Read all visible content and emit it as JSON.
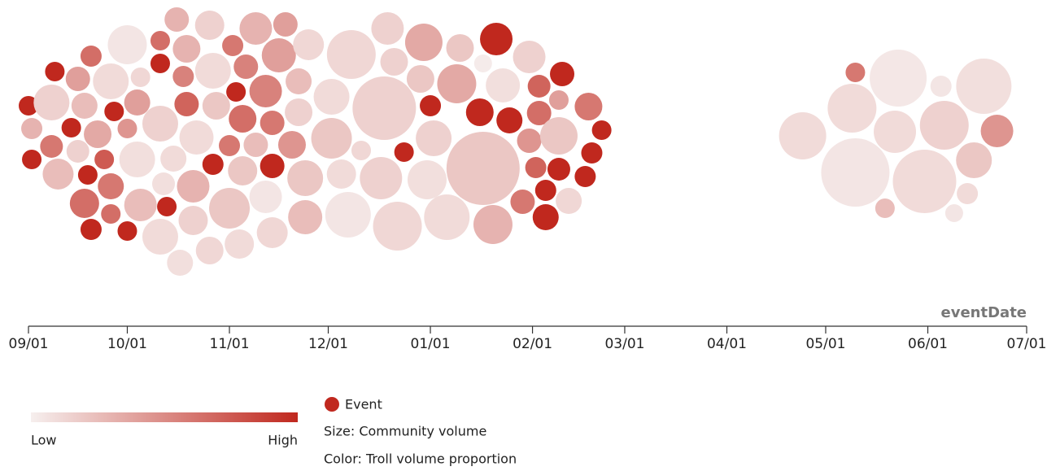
{
  "chart_data": {
    "type": "beeswarm",
    "x_label": "eventDate",
    "xlim": [
      "09/01",
      "07/01"
    ],
    "xticks": [
      "09/01",
      "10/01",
      "11/01",
      "12/01",
      "01/01",
      "02/01",
      "03/01",
      "04/01",
      "05/01",
      "06/01",
      "07/01"
    ],
    "event_color": "#c0281e",
    "color_scale": {
      "low": "#f6efee",
      "high": "#c0281e"
    },
    "legend": {
      "event": "Event",
      "size": "Size: Community volume",
      "color": "Color: Troll volume proportion",
      "low": "Low",
      "high": "High"
    },
    "bubbles": [
      {
        "date": "09/01",
        "size": 12,
        "troll": null,
        "event": true
      },
      {
        "date": "09/02",
        "size": 13,
        "troll": 0.3,
        "event": false
      },
      {
        "date": "09/02",
        "size": 12,
        "troll": null,
        "event": true
      },
      {
        "date": "09/08",
        "size": 14,
        "troll": 0.6,
        "event": false
      },
      {
        "date": "09/09",
        "size": 12,
        "troll": null,
        "event": true
      },
      {
        "date": "09/08",
        "size": 22,
        "troll": 0.15,
        "event": false
      },
      {
        "date": "09/10",
        "size": 19,
        "troll": 0.25,
        "event": false
      },
      {
        "date": "09/14",
        "size": 12,
        "troll": null,
        "event": true
      },
      {
        "date": "09/16",
        "size": 15,
        "troll": 0.4,
        "event": false
      },
      {
        "date": "09/16",
        "size": 14,
        "troll": 0.15,
        "event": false
      },
      {
        "date": "09/18",
        "size": 16,
        "troll": 0.25,
        "event": false
      },
      {
        "date": "09/20",
        "size": 13,
        "troll": 0.65,
        "event": false
      },
      {
        "date": "09/18",
        "size": 18,
        "troll": 0.65,
        "event": false
      },
      {
        "date": "09/19",
        "size": 12,
        "troll": null,
        "event": true
      },
      {
        "date": "09/20",
        "size": 13,
        "troll": null,
        "event": true
      },
      {
        "date": "09/22",
        "size": 17,
        "troll": 0.35,
        "event": false
      },
      {
        "date": "09/24",
        "size": 12,
        "troll": 0.75,
        "event": false
      },
      {
        "date": "09/26",
        "size": 16,
        "troll": 0.6,
        "event": false
      },
      {
        "date": "09/26",
        "size": 12,
        "troll": 0.65,
        "event": false
      },
      {
        "date": "09/26",
        "size": 22,
        "troll": 0.1,
        "event": false
      },
      {
        "date": "09/27",
        "size": 12,
        "troll": null,
        "event": true
      },
      {
        "date": "10/01",
        "size": 12,
        "troll": null,
        "event": true
      },
      {
        "date": "10/01",
        "size": 24,
        "troll": 0.05,
        "event": false
      },
      {
        "date": "10/01",
        "size": 12,
        "troll": 0.45,
        "event": false
      },
      {
        "date": "10/04",
        "size": 16,
        "troll": 0.4,
        "event": false
      },
      {
        "date": "10/04",
        "size": 22,
        "troll": 0.08,
        "event": false
      },
      {
        "date": "10/05",
        "size": 20,
        "troll": 0.25,
        "event": false
      },
      {
        "date": "10/05",
        "size": 12,
        "troll": 0.12,
        "event": false
      },
      {
        "date": "10/11",
        "size": 22,
        "troll": 0.15,
        "event": false
      },
      {
        "date": "10/11",
        "size": 12,
        "troll": 0.65,
        "event": false
      },
      {
        "date": "10/11",
        "size": 12,
        "troll": null,
        "event": true
      },
      {
        "date": "10/12",
        "size": 14,
        "troll": 0.08,
        "event": false
      },
      {
        "date": "10/11",
        "size": 22,
        "troll": 0.1,
        "event": false
      },
      {
        "date": "10/13",
        "size": 12,
        "troll": null,
        "event": true
      },
      {
        "date": "10/15",
        "size": 16,
        "troll": 0.1,
        "event": false
      },
      {
        "date": "10/16",
        "size": 15,
        "troll": 0.3,
        "event": false
      },
      {
        "date": "10/18",
        "size": 13,
        "troll": 0.55,
        "event": false
      },
      {
        "date": "10/19",
        "size": 17,
        "troll": 0.3,
        "event": false
      },
      {
        "date": "10/19",
        "size": 15,
        "troll": 0.7,
        "event": false
      },
      {
        "date": "10/21",
        "size": 20,
        "troll": 0.3,
        "event": false
      },
      {
        "date": "10/21",
        "size": 18,
        "troll": 0.15,
        "event": false
      },
      {
        "date": "10/22",
        "size": 21,
        "troll": 0.1,
        "event": false
      },
      {
        "date": "10/17",
        "size": 16,
        "troll": 0.08,
        "event": false
      },
      {
        "date": "10/26",
        "size": 17,
        "troll": 0.12,
        "event": false
      },
      {
        "date": "10/26",
        "size": 18,
        "troll": 0.15,
        "event": false
      },
      {
        "date": "10/27",
        "size": 22,
        "troll": 0.1,
        "event": false
      },
      {
        "date": "10/28",
        "size": 17,
        "troll": 0.2,
        "event": false
      },
      {
        "date": "10/27",
        "size": 13,
        "troll": null,
        "event": true
      },
      {
        "date": "11/01",
        "size": 25,
        "troll": 0.2,
        "event": false
      },
      {
        "date": "11/01",
        "size": 13,
        "troll": 0.6,
        "event": false
      },
      {
        "date": "11/02",
        "size": 13,
        "troll": 0.6,
        "event": false
      },
      {
        "date": "11/03",
        "size": 12,
        "troll": null,
        "event": true
      },
      {
        "date": "11/05",
        "size": 18,
        "troll": 0.2,
        "event": false
      },
      {
        "date": "11/05",
        "size": 17,
        "troll": 0.65,
        "event": false
      },
      {
        "date": "11/06",
        "size": 15,
        "troll": 0.55,
        "event": false
      },
      {
        "date": "11/09",
        "size": 20,
        "troll": 0.3,
        "event": false
      },
      {
        "date": "11/09",
        "size": 15,
        "troll": 0.25,
        "event": false
      },
      {
        "date": "11/04",
        "size": 18,
        "troll": 0.1,
        "event": false
      },
      {
        "date": "11/12",
        "size": 20,
        "troll": 0.55,
        "event": false
      },
      {
        "date": "11/12",
        "size": 20,
        "troll": 0.05,
        "event": false
      },
      {
        "date": "11/14",
        "size": 15,
        "troll": 0.6,
        "event": false
      },
      {
        "date": "11/14",
        "size": 15,
        "troll": null,
        "event": true
      },
      {
        "date": "11/16",
        "size": 21,
        "troll": 0.4,
        "event": false
      },
      {
        "date": "11/14",
        "size": 19,
        "troll": 0.12,
        "event": false
      },
      {
        "date": "11/18",
        "size": 15,
        "troll": 0.4,
        "event": false
      },
      {
        "date": "11/20",
        "size": 17,
        "troll": 0.45,
        "event": false
      },
      {
        "date": "11/22",
        "size": 16,
        "troll": 0.25,
        "event": false
      },
      {
        "date": "11/22",
        "size": 17,
        "troll": 0.15,
        "event": false
      },
      {
        "date": "11/24",
        "size": 22,
        "troll": 0.2,
        "event": false
      },
      {
        "date": "11/24",
        "size": 21,
        "troll": 0.25,
        "event": false
      },
      {
        "date": "11/25",
        "size": 19,
        "troll": 0.12,
        "event": false
      },
      {
        "date": "12/02",
        "size": 25,
        "troll": 0.2,
        "event": false
      },
      {
        "date": "12/02",
        "size": 22,
        "troll": 0.1,
        "event": false
      },
      {
        "date": "12/05",
        "size": 18,
        "troll": 0.1,
        "event": false
      },
      {
        "date": "12/07",
        "size": 28,
        "troll": 0.05,
        "event": false
      },
      {
        "date": "12/08",
        "size": 30,
        "troll": 0.12,
        "event": false
      },
      {
        "date": "12/11",
        "size": 12,
        "troll": 0.12,
        "event": false
      },
      {
        "date": "12/18",
        "size": 39,
        "troll": 0.15,
        "event": false
      },
      {
        "date": "12/17",
        "size": 26,
        "troll": 0.15,
        "event": false
      },
      {
        "date": "12/19",
        "size": 20,
        "troll": 0.15,
        "event": false
      },
      {
        "date": "12/21",
        "size": 17,
        "troll": 0.15,
        "event": false
      },
      {
        "date": "12/22",
        "size": 30,
        "troll": 0.12,
        "event": false
      },
      {
        "date": "12/24",
        "size": 12,
        "troll": null,
        "event": true
      },
      {
        "date": "12/30",
        "size": 23,
        "troll": 0.35,
        "event": false
      },
      {
        "date": "12/29",
        "size": 17,
        "troll": 0.2,
        "event": false
      },
      {
        "date": "12/31",
        "size": 24,
        "troll": 0.08,
        "event": false
      },
      {
        "date": "01/01",
        "size": 13,
        "troll": null,
        "event": true
      },
      {
        "date": "01/02",
        "size": 22,
        "troll": 0.15,
        "event": false
      },
      {
        "date": "01/06",
        "size": 28,
        "troll": 0.1,
        "event": false
      },
      {
        "date": "01/10",
        "size": 17,
        "troll": 0.2,
        "event": false
      },
      {
        "date": "01/09",
        "size": 24,
        "troll": 0.35,
        "event": false
      },
      {
        "date": "01/16",
        "size": 17,
        "troll": null,
        "event": true
      },
      {
        "date": "01/17",
        "size": 11,
        "troll": 0.02,
        "event": false
      },
      {
        "date": "01/17",
        "size": 45,
        "troll": 0.2,
        "event": false
      },
      {
        "date": "01/21",
        "size": 20,
        "troll": null,
        "event": true
      },
      {
        "date": "01/20",
        "size": 24,
        "troll": 0.3,
        "event": false
      },
      {
        "date": "01/23",
        "size": 21,
        "troll": 0.08,
        "event": false
      },
      {
        "date": "01/25",
        "size": 16,
        "troll": null,
        "event": true
      },
      {
        "date": "01/31",
        "size": 20,
        "troll": 0.15,
        "event": false
      },
      {
        "date": "01/31",
        "size": 15,
        "troll": 0.45,
        "event": false
      },
      {
        "date": "02/03",
        "size": 14,
        "troll": 0.7,
        "event": false
      },
      {
        "date": "02/03",
        "size": 15,
        "troll": 0.65,
        "event": false
      },
      {
        "date": "02/02",
        "size": 13,
        "troll": 0.7,
        "event": false
      },
      {
        "date": "01/29",
        "size": 15,
        "troll": 0.6,
        "event": false
      },
      {
        "date": "02/05",
        "size": 16,
        "troll": null,
        "event": true
      },
      {
        "date": "02/05",
        "size": 13,
        "troll": null,
        "event": true
      },
      {
        "date": "02/09",
        "size": 23,
        "troll": 0.2,
        "event": false
      },
      {
        "date": "02/10",
        "size": 15,
        "troll": null,
        "event": true
      },
      {
        "date": "02/09",
        "size": 12,
        "troll": 0.4,
        "event": false
      },
      {
        "date": "02/09",
        "size": 14,
        "troll": null,
        "event": true
      },
      {
        "date": "02/12",
        "size": 16,
        "troll": 0.12,
        "event": false
      },
      {
        "date": "02/17",
        "size": 13,
        "troll": null,
        "event": true
      },
      {
        "date": "02/18",
        "size": 17,
        "troll": 0.6,
        "event": false
      },
      {
        "date": "02/19",
        "size": 13,
        "troll": null,
        "event": true
      },
      {
        "date": "02/22",
        "size": 12,
        "troll": null,
        "event": true
      },
      {
        "date": "04/24",
        "size": 29,
        "troll": 0.1,
        "event": false
      },
      {
        "date": "05/10",
        "size": 12,
        "troll": 0.6,
        "event": false
      },
      {
        "date": "05/09",
        "size": 30,
        "troll": 0.1,
        "event": false
      },
      {
        "date": "05/10",
        "size": 42,
        "troll": 0.05,
        "event": false
      },
      {
        "date": "05/19",
        "size": 12,
        "troll": 0.25,
        "event": false
      },
      {
        "date": "05/23",
        "size": 35,
        "troll": 0.04,
        "event": false
      },
      {
        "date": "05/22",
        "size": 26,
        "troll": 0.1,
        "event": false
      },
      {
        "date": "05/31",
        "size": 39,
        "troll": 0.1,
        "event": false
      },
      {
        "date": "06/05",
        "size": 13,
        "troll": 0.05,
        "event": false
      },
      {
        "date": "06/06",
        "size": 30,
        "troll": 0.15,
        "event": false
      },
      {
        "date": "06/09",
        "size": 11,
        "troll": 0.05,
        "event": false
      },
      {
        "date": "06/13",
        "size": 13,
        "troll": 0.1,
        "event": false
      },
      {
        "date": "06/15",
        "size": 22,
        "troll": 0.2,
        "event": false
      },
      {
        "date": "06/18",
        "size": 34,
        "troll": 0.08,
        "event": false
      },
      {
        "date": "06/22",
        "size": 20,
        "troll": 0.45,
        "event": false
      }
    ]
  }
}
